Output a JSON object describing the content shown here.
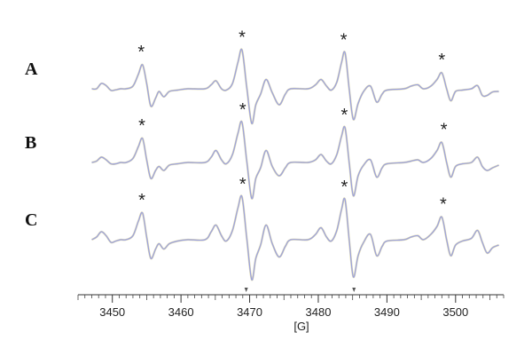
{
  "chart_data": {
    "type": "line",
    "title": "",
    "xlabel": "[G]",
    "ylabel": "",
    "xlim": [
      3445,
      3507
    ],
    "tick_labels": [
      "3450",
      "3460",
      "3470",
      "3480",
      "3490",
      "3500"
    ],
    "tick_values": [
      3450,
      3460,
      3470,
      3480,
      3490,
      3500
    ],
    "minor_tick_step": 1,
    "axis_markers": [
      3469.5,
      3485.2
    ],
    "peak_marker": "*",
    "line_colors": [
      "#9aa0e0",
      "#c8c070"
    ],
    "panels": [
      {
        "label": "A",
        "peaks": [
          3454.2,
          3468.9,
          3483.7,
          3498.0
        ],
        "points": [
          [
            3447,
            0.0
          ],
          [
            3447.7,
            0.0
          ],
          [
            3448.4,
            0.2
          ],
          [
            3449.1,
            0.12
          ],
          [
            3449.8,
            -0.06
          ],
          [
            3450.5,
            -0.04
          ],
          [
            3451.2,
            0.0
          ],
          [
            3452.0,
            0.0
          ],
          [
            3453.0,
            0.1
          ],
          [
            3453.8,
            0.55
          ],
          [
            3454.4,
            0.9
          ],
          [
            3455.0,
            0.2
          ],
          [
            3455.6,
            -0.65
          ],
          [
            3456.3,
            -0.35
          ],
          [
            3456.8,
            -0.1
          ],
          [
            3457.5,
            -0.3
          ],
          [
            3458.3,
            -0.1
          ],
          [
            3459.5,
            -0.05
          ],
          [
            3461.0,
            0.0
          ],
          [
            3463.5,
            0.0
          ],
          [
            3464.4,
            0.15
          ],
          [
            3465.1,
            0.3
          ],
          [
            3465.9,
            0.0
          ],
          [
            3466.6,
            -0.05
          ],
          [
            3467.5,
            0.2
          ],
          [
            3468.3,
            1.0
          ],
          [
            3468.9,
            1.45
          ],
          [
            3469.6,
            0.0
          ],
          [
            3470.3,
            -1.3
          ],
          [
            3470.9,
            -0.6
          ],
          [
            3471.6,
            -0.2
          ],
          [
            3472.4,
            0.35
          ],
          [
            3473.3,
            -0.15
          ],
          [
            3474.3,
            -0.6
          ],
          [
            3475.2,
            -0.2
          ],
          [
            3476.0,
            0.0
          ],
          [
            3478.5,
            0.0
          ],
          [
            3479.6,
            0.15
          ],
          [
            3480.4,
            0.35
          ],
          [
            3481.2,
            0.1
          ],
          [
            3481.9,
            -0.05
          ],
          [
            3482.7,
            0.25
          ],
          [
            3483.4,
            1.0
          ],
          [
            3483.9,
            1.35
          ],
          [
            3484.5,
            0.0
          ],
          [
            3485.1,
            -1.15
          ],
          [
            3485.8,
            -0.55
          ],
          [
            3486.6,
            -0.1
          ],
          [
            3487.6,
            0.1
          ],
          [
            3488.5,
            -0.5
          ],
          [
            3489.3,
            -0.2
          ],
          [
            3490.0,
            -0.05
          ],
          [
            3492.5,
            0.0
          ],
          [
            3493.5,
            0.1
          ],
          [
            3494.5,
            0.15
          ],
          [
            3495.3,
            0.0
          ],
          [
            3496.4,
            0.1
          ],
          [
            3497.3,
            0.35
          ],
          [
            3498.0,
            0.6
          ],
          [
            3498.7,
            0.0
          ],
          [
            3499.3,
            -0.45
          ],
          [
            3500.0,
            -0.1
          ],
          [
            3501.0,
            -0.05
          ],
          [
            3502.3,
            0.0
          ],
          [
            3503.2,
            0.12
          ],
          [
            3503.9,
            -0.25
          ],
          [
            3504.6,
            -0.25
          ],
          [
            3505.4,
            -0.12
          ],
          [
            3506.3,
            -0.1
          ]
        ]
      },
      {
        "label": "B",
        "peaks": [
          3454.3,
          3469.0,
          3483.8,
          3498.3
        ],
        "points": [
          [
            3447,
            0.0
          ],
          [
            3447.7,
            0.05
          ],
          [
            3448.4,
            0.2
          ],
          [
            3449.1,
            0.1
          ],
          [
            3449.8,
            -0.05
          ],
          [
            3450.5,
            -0.05
          ],
          [
            3451.2,
            0.0
          ],
          [
            3452.0,
            0.0
          ],
          [
            3453.0,
            0.15
          ],
          [
            3453.8,
            0.6
          ],
          [
            3454.4,
            0.9
          ],
          [
            3455.0,
            0.1
          ],
          [
            3455.6,
            -0.6
          ],
          [
            3456.3,
            -0.3
          ],
          [
            3456.8,
            -0.15
          ],
          [
            3457.5,
            -0.3
          ],
          [
            3458.3,
            -0.1
          ],
          [
            3459.5,
            -0.05
          ],
          [
            3461.0,
            0.0
          ],
          [
            3463.5,
            0.0
          ],
          [
            3464.4,
            0.2
          ],
          [
            3465.1,
            0.45
          ],
          [
            3465.9,
            0.1
          ],
          [
            3466.6,
            -0.05
          ],
          [
            3467.5,
            0.3
          ],
          [
            3468.3,
            1.1
          ],
          [
            3468.9,
            1.5
          ],
          [
            3469.6,
            0.0
          ],
          [
            3470.3,
            -1.35
          ],
          [
            3470.9,
            -0.6
          ],
          [
            3471.6,
            -0.2
          ],
          [
            3472.4,
            0.45
          ],
          [
            3473.3,
            -0.15
          ],
          [
            3474.3,
            -0.5
          ],
          [
            3475.2,
            -0.2
          ],
          [
            3476.0,
            0.0
          ],
          [
            3478.5,
            0.0
          ],
          [
            3479.6,
            0.1
          ],
          [
            3480.4,
            0.3
          ],
          [
            3481.2,
            0.05
          ],
          [
            3481.9,
            -0.05
          ],
          [
            3482.7,
            0.3
          ],
          [
            3483.4,
            1.0
          ],
          [
            3483.9,
            1.3
          ],
          [
            3484.5,
            0.0
          ],
          [
            3485.1,
            -1.25
          ],
          [
            3485.8,
            -0.5
          ],
          [
            3486.6,
            -0.1
          ],
          [
            3487.6,
            0.1
          ],
          [
            3488.5,
            -0.55
          ],
          [
            3489.3,
            -0.2
          ],
          [
            3490.0,
            -0.05
          ],
          [
            3492.5,
            0.0
          ],
          [
            3493.5,
            0.05
          ],
          [
            3494.5,
            0.1
          ],
          [
            3495.3,
            0.0
          ],
          [
            3496.4,
            0.15
          ],
          [
            3497.3,
            0.45
          ],
          [
            3498.0,
            0.75
          ],
          [
            3498.7,
            0.0
          ],
          [
            3499.3,
            -0.55
          ],
          [
            3500.0,
            -0.15
          ],
          [
            3501.0,
            -0.05
          ],
          [
            3502.3,
            0.0
          ],
          [
            3503.2,
            0.2
          ],
          [
            3503.9,
            -0.15
          ],
          [
            3504.6,
            -0.3
          ],
          [
            3505.4,
            -0.2
          ],
          [
            3506.3,
            -0.1
          ]
        ]
      },
      {
        "label": "C",
        "peaks": [
          3454.3,
          3469.0,
          3483.8,
          3498.2
        ],
        "points": [
          [
            3447,
            0.0
          ],
          [
            3447.7,
            0.1
          ],
          [
            3448.4,
            0.3
          ],
          [
            3449.1,
            0.15
          ],
          [
            3449.8,
            -0.1
          ],
          [
            3450.5,
            -0.05
          ],
          [
            3451.2,
            0.0
          ],
          [
            3452.0,
            0.0
          ],
          [
            3453.0,
            0.15
          ],
          [
            3453.8,
            0.7
          ],
          [
            3454.4,
            1.0
          ],
          [
            3455.0,
            0.1
          ],
          [
            3455.6,
            -0.7
          ],
          [
            3456.3,
            -0.35
          ],
          [
            3456.8,
            -0.15
          ],
          [
            3457.5,
            -0.35
          ],
          [
            3458.3,
            -0.15
          ],
          [
            3459.5,
            -0.05
          ],
          [
            3461.0,
            0.0
          ],
          [
            3463.5,
            0.0
          ],
          [
            3464.4,
            0.3
          ],
          [
            3465.1,
            0.55
          ],
          [
            3465.9,
            0.15
          ],
          [
            3466.6,
            -0.05
          ],
          [
            3467.5,
            0.35
          ],
          [
            3468.3,
            1.2
          ],
          [
            3468.9,
            1.6
          ],
          [
            3469.6,
            0.0
          ],
          [
            3470.3,
            -1.5
          ],
          [
            3470.9,
            -0.7
          ],
          [
            3471.6,
            -0.2
          ],
          [
            3472.4,
            0.55
          ],
          [
            3473.3,
            -0.15
          ],
          [
            3474.3,
            -0.65
          ],
          [
            3475.2,
            -0.25
          ],
          [
            3476.0,
            0.0
          ],
          [
            3478.5,
            0.0
          ],
          [
            3479.6,
            0.2
          ],
          [
            3480.4,
            0.45
          ],
          [
            3481.2,
            0.1
          ],
          [
            3481.9,
            -0.05
          ],
          [
            3482.7,
            0.35
          ],
          [
            3483.4,
            1.15
          ],
          [
            3483.9,
            1.5
          ],
          [
            3484.5,
            0.0
          ],
          [
            3485.1,
            -1.4
          ],
          [
            3485.8,
            -0.6
          ],
          [
            3486.6,
            -0.1
          ],
          [
            3487.6,
            0.2
          ],
          [
            3488.5,
            -0.6
          ],
          [
            3489.3,
            -0.25
          ],
          [
            3490.0,
            -0.05
          ],
          [
            3492.5,
            0.0
          ],
          [
            3493.5,
            0.1
          ],
          [
            3494.5,
            0.15
          ],
          [
            3495.3,
            0.0
          ],
          [
            3496.4,
            0.2
          ],
          [
            3497.3,
            0.5
          ],
          [
            3498.0,
            0.85
          ],
          [
            3498.7,
            0.0
          ],
          [
            3499.3,
            -0.6
          ],
          [
            3500.0,
            -0.2
          ],
          [
            3501.0,
            -0.05
          ],
          [
            3502.3,
            0.05
          ],
          [
            3503.2,
            0.35
          ],
          [
            3503.9,
            -0.1
          ],
          [
            3504.6,
            -0.5
          ],
          [
            3505.4,
            -0.3
          ],
          [
            3506.3,
            -0.2
          ]
        ]
      }
    ]
  }
}
